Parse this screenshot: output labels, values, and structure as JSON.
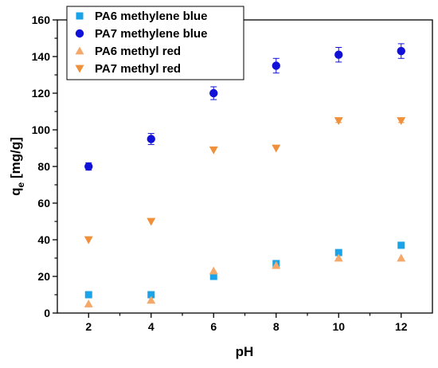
{
  "chart_data": {
    "type": "scatter",
    "title": "",
    "xlabel": "pH",
    "ylabel": "q",
    "ylabel_subscript": "e",
    "ylabel_unit": " [mg/g]",
    "xlim": [
      1,
      13
    ],
    "ylim": [
      0,
      160
    ],
    "x_ticks": [
      2,
      4,
      6,
      8,
      10,
      12
    ],
    "x_minor_ticks": [
      3,
      5,
      7,
      9,
      11
    ],
    "y_ticks": [
      0,
      20,
      40,
      60,
      80,
      100,
      120,
      140,
      160
    ],
    "y_minor_ticks": [
      10,
      30,
      50,
      70,
      90,
      110,
      130,
      150
    ],
    "grid": false,
    "legend_position": "top-left",
    "series": [
      {
        "name": "PA6 methylene blue",
        "marker": "square",
        "color": "#1aa3e8",
        "x": [
          2,
          4,
          6,
          8,
          10,
          12
        ],
        "y": [
          10,
          10,
          20,
          27,
          33,
          37
        ],
        "yerr": [
          0,
          0,
          0,
          0,
          0,
          0
        ]
      },
      {
        "name": "PA7 methylene blue",
        "marker": "circle",
        "color": "#1010d8",
        "x": [
          2,
          4,
          6,
          8,
          10,
          12
        ],
        "y": [
          80,
          95,
          120,
          135,
          141,
          143
        ],
        "yerr": [
          2,
          3,
          3.5,
          4,
          4,
          4
        ]
      },
      {
        "name": "PA6 methyl red",
        "marker": "triangle-up",
        "color": "#f4a96a",
        "x": [
          2,
          4,
          6,
          8,
          10,
          12
        ],
        "y": [
          5,
          7,
          23,
          26,
          30,
          30
        ],
        "yerr": [
          0,
          0,
          0,
          0,
          0,
          0
        ]
      },
      {
        "name": "PA7 methyl red",
        "marker": "triangle-down",
        "color": "#f0903a",
        "x": [
          2,
          4,
          6,
          8,
          10,
          12
        ],
        "y": [
          40,
          50,
          89,
          90,
          105,
          105
        ],
        "yerr": [
          0,
          0,
          0,
          0,
          1,
          1
        ]
      }
    ]
  }
}
